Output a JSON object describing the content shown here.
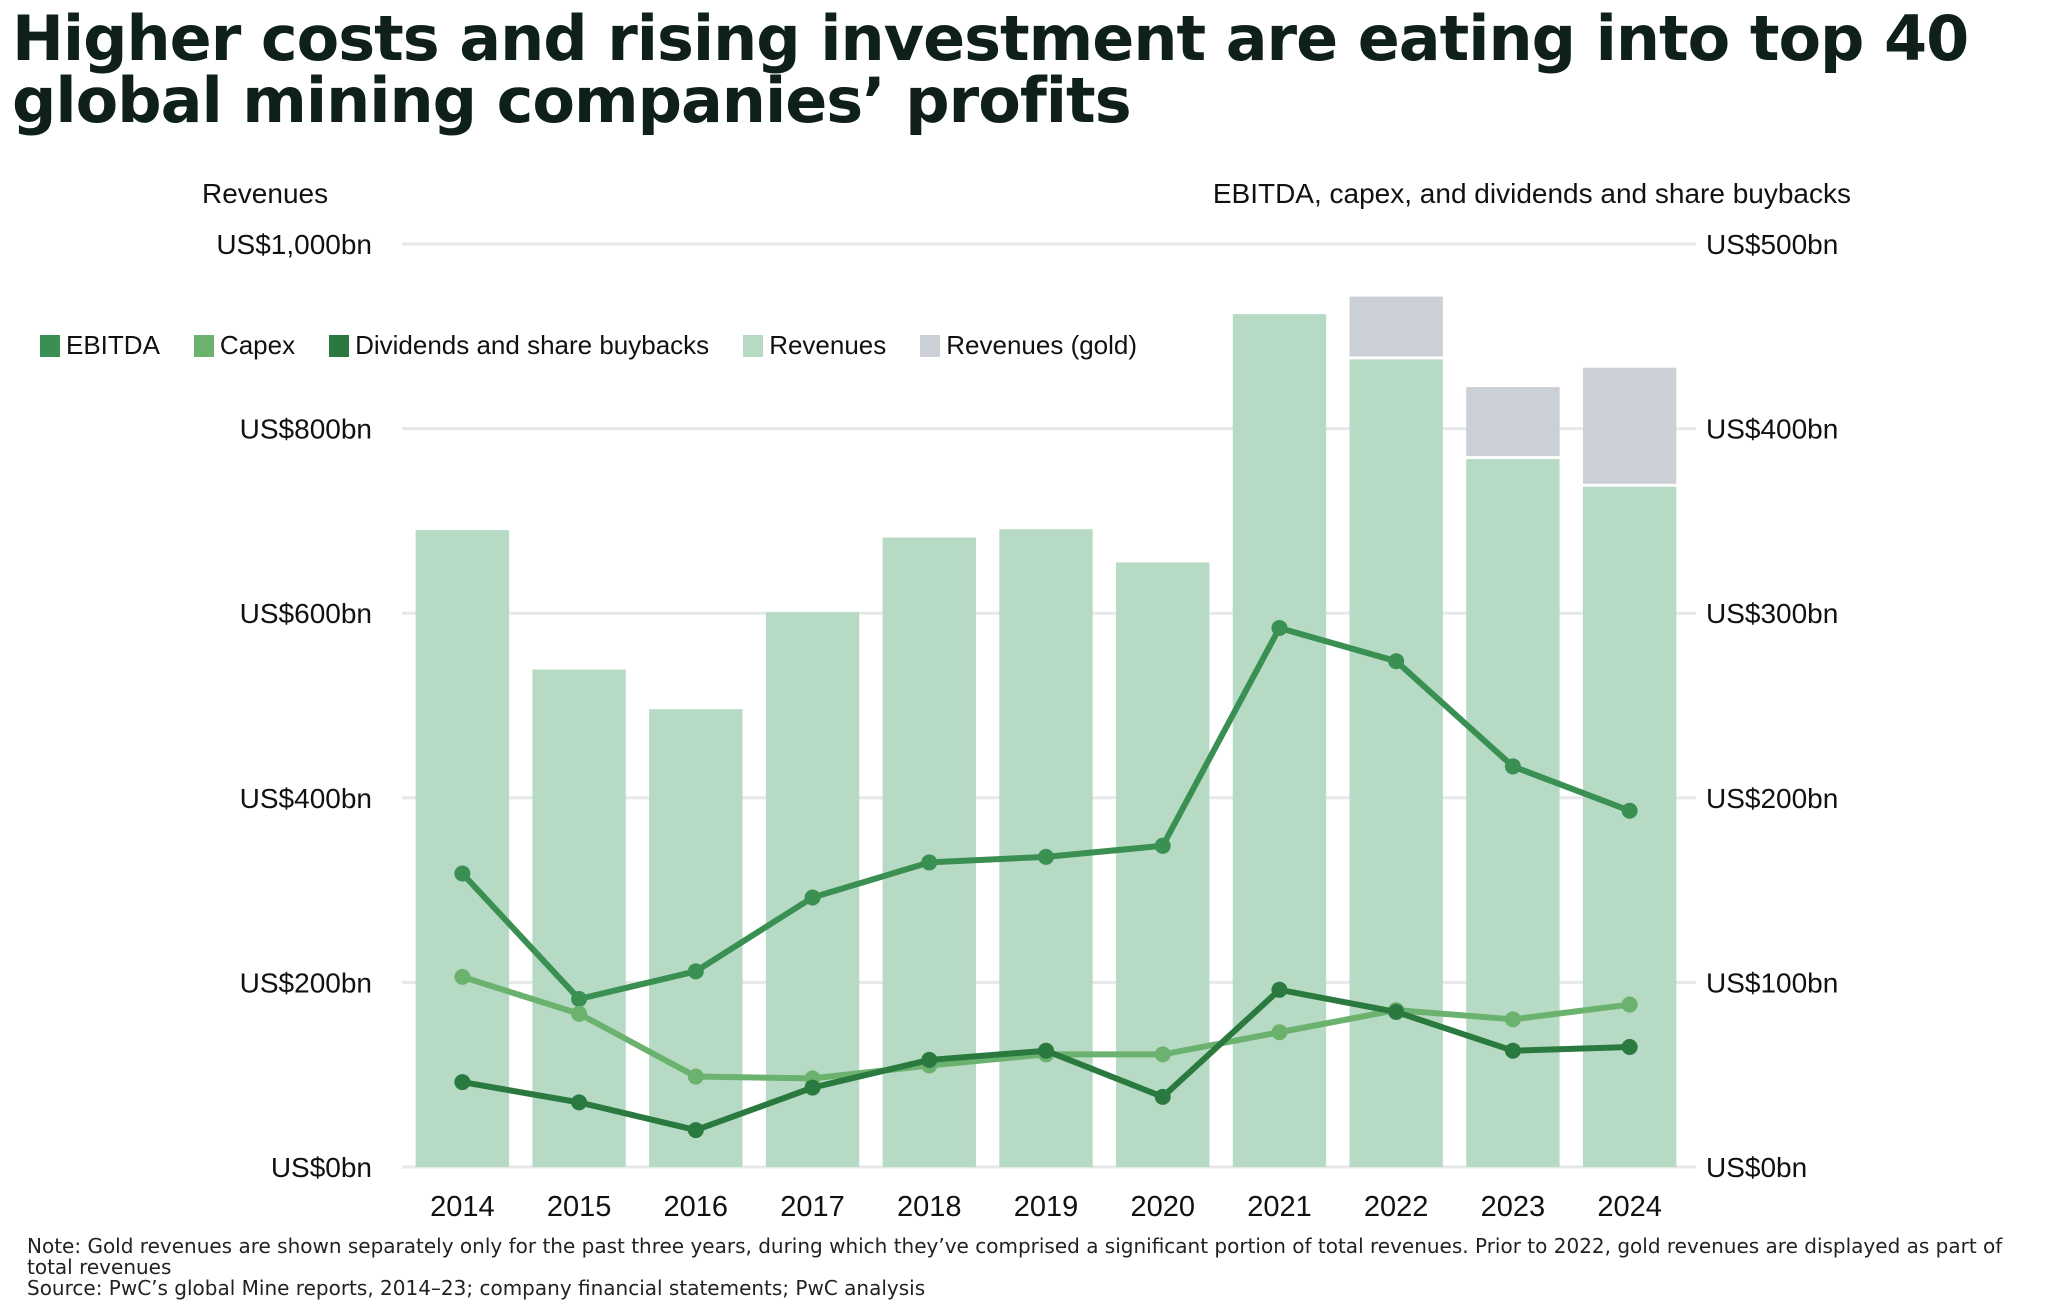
{
  "title": "Higher costs and rising investment are eating into top 40 global mining companies’ profits",
  "left_axis_title": "Revenues",
  "right_axis_title": "EBITDA, capex, and dividends and share buybacks",
  "note": "Note: Gold revenues are shown separately only for the past three years, during which they’ve comprised a significant portion of total revenues. Prior to 2022, gold revenues are displayed as part of total revenues",
  "source": "Source: PwC’s global Mine reports, 2014–23; company financial statements; PwC analysis",
  "legend": [
    {
      "label": "EBITDA",
      "color": "#3a8f52"
    },
    {
      "label": "Capex",
      "color": "#6cb26f"
    },
    {
      "label": "Dividends and share buybacks",
      "color": "#2a7a40"
    },
    {
      "label": "Revenues",
      "color": "#b7dac5"
    },
    {
      "label": "Revenues (gold)",
      "color": "#cbd0d6"
    }
  ],
  "chart_data": {
    "type": "bar",
    "title": "Higher costs and rising investment are eating into top 40 global mining companies’ profits",
    "categories": [
      "2014",
      "2015",
      "2016",
      "2017",
      "2018",
      "2019",
      "2020",
      "2021",
      "2022",
      "2023",
      "2024"
    ],
    "left_axis": {
      "label": "Revenues",
      "range": [
        0,
        1000
      ],
      "ticks": [
        0,
        200,
        400,
        600,
        800,
        1000
      ],
      "tick_labels": [
        "US$0bn",
        "US$200bn",
        "US$400bn",
        "US$600bn",
        "US$800bn",
        "US$1,000bn"
      ]
    },
    "right_axis": {
      "label": "EBITDA, capex, and dividends and share buybacks",
      "range": [
        0,
        500
      ],
      "ticks": [
        0,
        100,
        200,
        300,
        400,
        500
      ],
      "tick_labels": [
        "US$0bn",
        "US$100bn",
        "US$200bn",
        "US$300bn",
        "US$400bn",
        "US$500bn"
      ]
    },
    "grid": true,
    "legend_position": "top-left",
    "bar_series": [
      {
        "name": "Revenues",
        "axis": "left",
        "color": "#b7dac5",
        "values": [
          690,
          539,
          496,
          601,
          682,
          691,
          655,
          924,
          875,
          767,
          737
        ]
      },
      {
        "name": "Revenues (gold)",
        "axis": "left",
        "color": "#cbd0d6",
        "stacked_on": "Revenues",
        "values": [
          0,
          0,
          0,
          0,
          0,
          0,
          0,
          0,
          68,
          78,
          129
        ]
      }
    ],
    "line_series": [
      {
        "name": "EBITDA",
        "axis": "right",
        "color": "#3a8f52",
        "values": [
          159,
          91,
          106,
          146,
          165,
          168,
          174,
          292,
          274,
          217,
          193
        ]
      },
      {
        "name": "Capex",
        "axis": "right",
        "color": "#6cb26f",
        "values": [
          103,
          83,
          49,
          48,
          55,
          61,
          61,
          73,
          85,
          80,
          88
        ]
      },
      {
        "name": "Dividends and share buybacks",
        "axis": "right",
        "color": "#2a7a40",
        "values": [
          46,
          35,
          20,
          43,
          58,
          63,
          38,
          96,
          84,
          63,
          65
        ]
      }
    ]
  }
}
